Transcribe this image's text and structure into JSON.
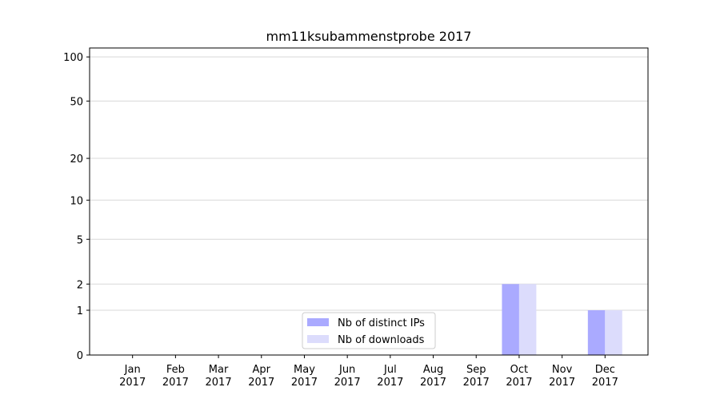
{
  "chart_data": {
    "type": "bar",
    "title": "mm11ksubammenstprobe 2017",
    "categories": [
      "Jan 2017",
      "Feb 2017",
      "Mar 2017",
      "Apr 2017",
      "May 2017",
      "Jun 2017",
      "Jul 2017",
      "Aug 2017",
      "Sep 2017",
      "Oct 2017",
      "Nov 2017",
      "Dec 2017"
    ],
    "series": [
      {
        "name": "Nb of distinct IPs",
        "color": "#aaaaff",
        "values": [
          0,
          0,
          0,
          0,
          0,
          0,
          0,
          0,
          0,
          2,
          0,
          1
        ]
      },
      {
        "name": "Nb of downloads",
        "color": "#dcdcfc",
        "values": [
          0,
          0,
          0,
          0,
          0,
          0,
          0,
          0,
          0,
          2,
          0,
          1
        ]
      }
    ],
    "yscale": "log1p",
    "ylim": [
      0,
      115
    ],
    "yticks": [
      0,
      1,
      2,
      5,
      10,
      20,
      50,
      100
    ],
    "grid": true,
    "legend": "lower center"
  }
}
